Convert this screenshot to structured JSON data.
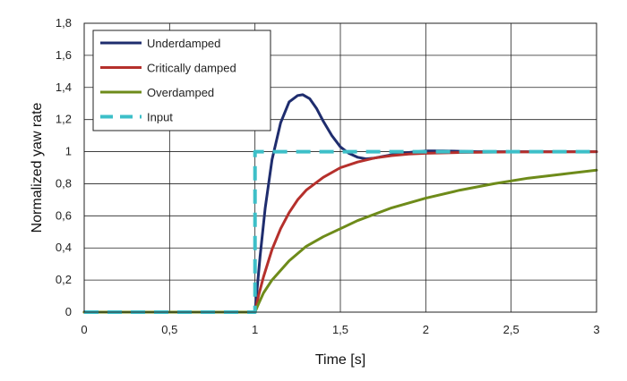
{
  "chart_data": {
    "type": "line",
    "xlabel": "Time [s]",
    "ylabel": "Normalized yaw rate",
    "xlim": [
      0,
      3
    ],
    "ylim": [
      0,
      1.8
    ],
    "x_ticks": [
      0,
      0.5,
      1,
      1.5,
      2,
      2.5,
      3
    ],
    "x_tick_labels": [
      "0",
      "0,5",
      "1",
      "1,5",
      "2",
      "2,5",
      "3"
    ],
    "y_ticks": [
      0,
      0.2,
      0.4,
      0.6,
      0.8,
      1,
      1.2,
      1.4,
      1.6,
      1.8
    ],
    "y_tick_labels": [
      "0",
      "0,2",
      "0,4",
      "0,6",
      "0,8",
      "1",
      "1,2",
      "1,4",
      "1,6",
      "1,8"
    ],
    "grid": true,
    "legend_position": "top-left",
    "series": [
      {
        "name": "Underdamped",
        "color": "#1f2d6e",
        "style": "solid",
        "x": [
          0,
          1.0,
          1.03,
          1.06,
          1.1,
          1.15,
          1.2,
          1.25,
          1.28,
          1.32,
          1.36,
          1.4,
          1.45,
          1.5,
          1.55,
          1.6,
          1.65,
          1.7,
          1.75,
          1.8,
          1.9,
          2.0,
          2.1,
          2.3,
          2.5,
          3.0
        ],
        "y": [
          0,
          0,
          0.35,
          0.65,
          0.95,
          1.18,
          1.31,
          1.35,
          1.355,
          1.33,
          1.27,
          1.19,
          1.1,
          1.03,
          0.99,
          0.965,
          0.955,
          0.96,
          0.97,
          0.98,
          0.995,
          1.005,
          1.005,
          1.0,
          1.0,
          1.0
        ]
      },
      {
        "name": "Critically damped",
        "color": "#b5302c",
        "style": "solid",
        "x": [
          0,
          1.0,
          1.02,
          1.05,
          1.1,
          1.15,
          1.2,
          1.25,
          1.3,
          1.4,
          1.5,
          1.6,
          1.7,
          1.8,
          1.9,
          2.0,
          2.2,
          2.5,
          3.0
        ],
        "y": [
          0,
          0,
          0.1,
          0.22,
          0.39,
          0.52,
          0.62,
          0.7,
          0.76,
          0.84,
          0.9,
          0.935,
          0.96,
          0.975,
          0.985,
          0.99,
          0.995,
          0.998,
          1.0
        ]
      },
      {
        "name": "Overdamped",
        "color": "#6e8b1a",
        "style": "solid",
        "x": [
          0,
          1.0,
          1.02,
          1.05,
          1.1,
          1.2,
          1.3,
          1.4,
          1.5,
          1.6,
          1.8,
          2.0,
          2.2,
          2.4,
          2.6,
          2.8,
          3.0
        ],
        "y": [
          0,
          0,
          0.05,
          0.12,
          0.2,
          0.32,
          0.41,
          0.47,
          0.52,
          0.57,
          0.65,
          0.71,
          0.76,
          0.8,
          0.835,
          0.86,
          0.885
        ]
      },
      {
        "name": "Input",
        "color": "#3dbfc8",
        "style": "dashed",
        "x": [
          0,
          1.0,
          1.0,
          3.0
        ],
        "y": [
          0,
          0,
          1.0,
          1.0
        ]
      }
    ]
  }
}
